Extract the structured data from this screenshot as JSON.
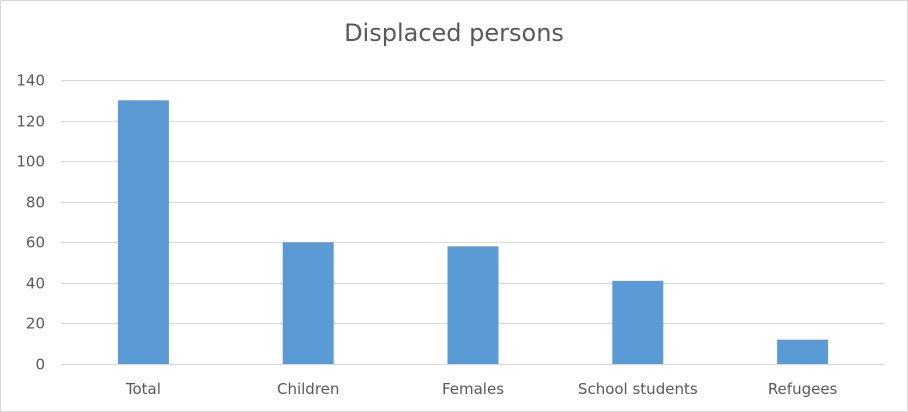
{
  "chart_data": {
    "type": "bar",
    "title": "Displaced persons",
    "xlabel": "",
    "ylabel": "",
    "categories": [
      "Total",
      "Children",
      "Females",
      "School students",
      "Refugees"
    ],
    "values": [
      130,
      60,
      58,
      41,
      12
    ],
    "ylim": [
      0,
      140
    ],
    "yticks": [
      0,
      20,
      40,
      60,
      80,
      100,
      120,
      140
    ],
    "grid": true,
    "legend": "none",
    "bar_color": "#5b9bd5",
    "grid_color": "#d9d9d9",
    "text_color": "#595959"
  }
}
